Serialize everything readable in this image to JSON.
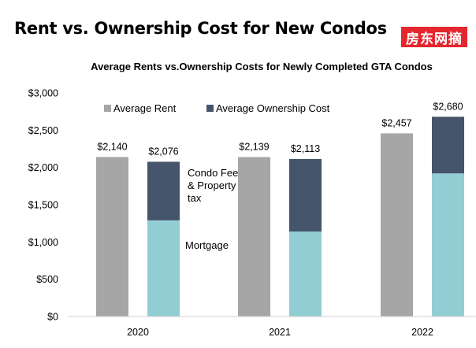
{
  "header": {
    "title": "Rent vs. Ownership Cost for New Condos",
    "logo_text": "房东网摘"
  },
  "colors": {
    "rent": "#a6a6a6",
    "condo_fee": "#44546a",
    "mortgage": "#92cdd4",
    "logo_bg": "#e4262e"
  },
  "chart_data": {
    "type": "bar",
    "title": "Average Rents vs.Ownership Costs for Newly Completed GTA Condos",
    "categories": [
      "2020",
      "2021",
      "2022"
    ],
    "ylim": [
      0,
      3000
    ],
    "yticks": [
      0,
      500,
      1000,
      1500,
      2000,
      2500,
      3000
    ],
    "ytick_labels": [
      "$0",
      "$500",
      "$1,000",
      "$1,500",
      "$2,000",
      "$2,500",
      "$3,000"
    ],
    "legend": [
      "Average Rent",
      "Average Ownership Cost"
    ],
    "legend_placement": "top",
    "grid": false,
    "series": [
      {
        "name": "Average Rent",
        "values": [
          2140,
          2139,
          2457
        ],
        "labels": [
          "$2,140",
          "$2,139",
          "$2,457"
        ]
      },
      {
        "name": "Average Ownership Cost",
        "values": [
          2076,
          2113,
          2680
        ],
        "labels": [
          "$2,076",
          "$2,113",
          "$2,680"
        ],
        "mortgage": [
          1290,
          1140,
          1920
        ],
        "condo_fee_and_tax": [
          786,
          973,
          760
        ]
      }
    ],
    "annotations": {
      "condo_fee_lines": [
        "Condo Fee",
        "& Property",
        "tax"
      ],
      "mortgage": "Mortgage"
    }
  }
}
